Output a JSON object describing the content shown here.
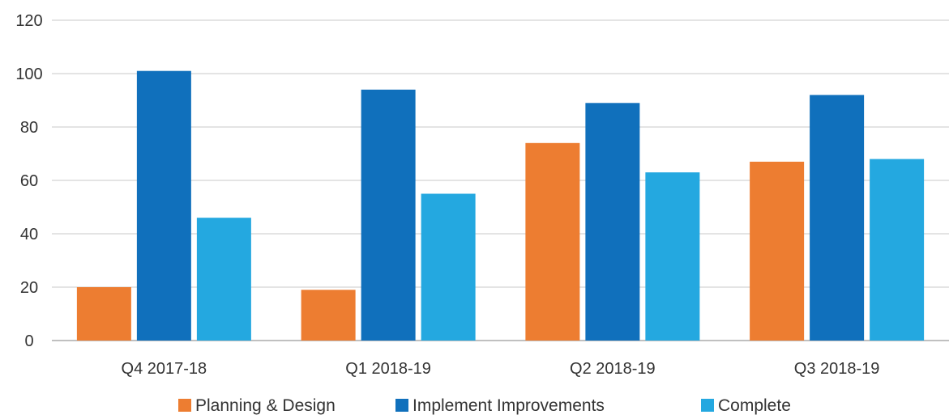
{
  "chart_data": {
    "type": "bar",
    "title": "",
    "xlabel": "",
    "ylabel": "",
    "categories": [
      "Q4 2017-18",
      "Q1 2018-19",
      "Q2 2018-19",
      "Q3 2018-19"
    ],
    "ylim": [
      0,
      120
    ],
    "yticks": [
      0,
      20,
      40,
      60,
      80,
      100,
      120
    ],
    "grid": true,
    "legend_position": "bottom",
    "series": [
      {
        "name": "Planning & Design",
        "color": "#ED7D31",
        "values": [
          20,
          19,
          74,
          67
        ]
      },
      {
        "name": "Implement Improvements",
        "color": "#1070BC",
        "values": [
          101,
          94,
          89,
          92
        ]
      },
      {
        "name": "Complete",
        "color": "#24A8E0",
        "values": [
          46,
          55,
          63,
          68
        ]
      }
    ]
  }
}
